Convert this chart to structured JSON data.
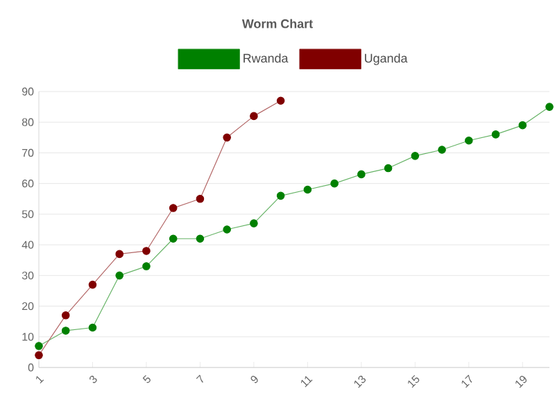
{
  "chart_data": {
    "type": "line",
    "title": "Worm Chart",
    "categories": [
      "1",
      null,
      "3",
      null,
      "5",
      null,
      "7",
      null,
      "9",
      null,
      "11",
      null,
      "13",
      null,
      "15",
      null,
      "17",
      null,
      "19",
      null
    ],
    "series": [
      {
        "name": "Rwanda",
        "color": "#008000",
        "values": [
          7,
          12,
          13,
          30,
          33,
          42,
          42,
          45,
          47,
          56,
          58,
          60,
          63,
          65,
          69,
          71,
          74,
          76,
          79,
          85
        ]
      },
      {
        "name": "Uganda",
        "color": "#800000",
        "values": [
          4,
          17,
          27,
          37,
          38,
          52,
          55,
          75,
          82,
          87,
          null,
          null,
          null,
          null,
          null,
          null,
          null,
          null,
          null,
          null
        ]
      }
    ],
    "ylim": [
      0,
      90
    ],
    "yticks": [
      0,
      10,
      20,
      30,
      40,
      50,
      60,
      70,
      80,
      90
    ],
    "grid": "y",
    "legend": "top",
    "marker": "circle",
    "line_style": "solid"
  }
}
